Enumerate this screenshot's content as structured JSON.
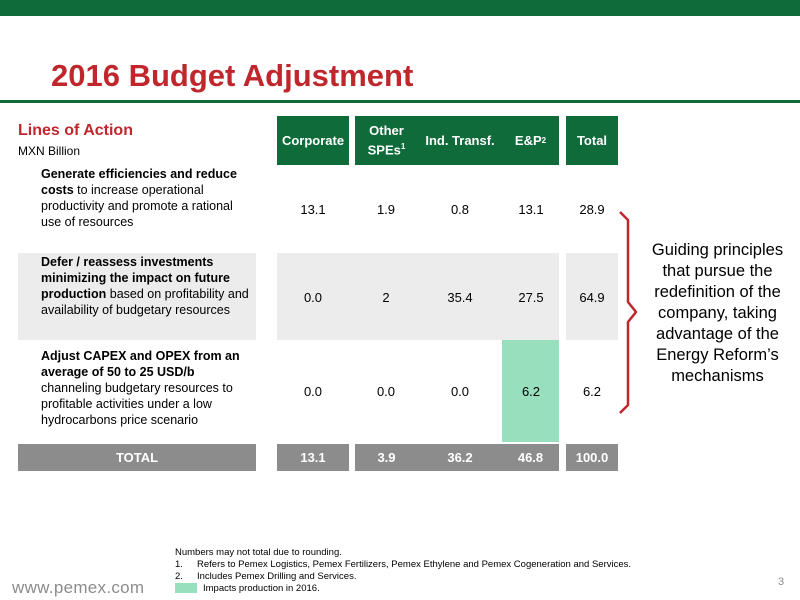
{
  "slide": {
    "title": "2016 Budget Adjustment",
    "page_number": "3",
    "footer_url": "www.pemex.com"
  },
  "table": {
    "header_title": "Lines of Action",
    "header_subtitle": "MXN Billion",
    "columns": {
      "corporate": "Corporate",
      "other_spes_line1": "Other",
      "other_spes_line2": "SPEs",
      "other_spes_sup": "1",
      "ind_transf": "Ind. Transf.",
      "ep": "E&P",
      "ep_sup": "2",
      "total": "Total"
    },
    "rows": [
      {
        "bold_text": "Generate efficiencies and reduce costs",
        "rest_text": " to increase operational productivity and promote a rational use of resources",
        "values": [
          "13.1",
          "1.9",
          "0.8",
          "13.1",
          "28.9"
        ]
      },
      {
        "bold_text": "Defer / reassess investments minimizing the impact on future production",
        "rest_text": " based on profitability and availability of budgetary resources",
        "values": [
          "0.0",
          "2",
          "35.4",
          "27.5",
          "64.9"
        ]
      },
      {
        "bold_text": "Adjust CAPEX and OPEX from an average of 50 to 25 USD/b",
        "rest_text": " channeling budgetary resources to profitable activities under a low hydrocarbons price scenario",
        "values": [
          "0.0",
          "0.0",
          "0.0",
          "6.2",
          "6.2"
        ]
      }
    ],
    "total_row": {
      "label": "TOTAL",
      "values": [
        "13.1",
        "3.9",
        "36.2",
        "46.8",
        "100.0"
      ]
    }
  },
  "side_note": "Guiding principles that  pursue the redefinition of the company, taking advantage of the Energy Reform’s mechanisms",
  "footnotes": {
    "intro": "Numbers may not total due to rounding.",
    "n1_num": "1.",
    "n1": "Refers to Pemex Logistics, Pemex Fertilizers, Pemex Ethylene and Pemex Cogeneration and Services.",
    "n2_num": "2.",
    "n2": "Includes Pemex Drilling and Services.",
    "legend": "Impacts production in 2016."
  },
  "colors": {
    "brand_green": "#0f6b3a",
    "title_red": "#c0272d",
    "highlight_green": "#98dfbd",
    "total_gray": "#8c8c8c"
  }
}
